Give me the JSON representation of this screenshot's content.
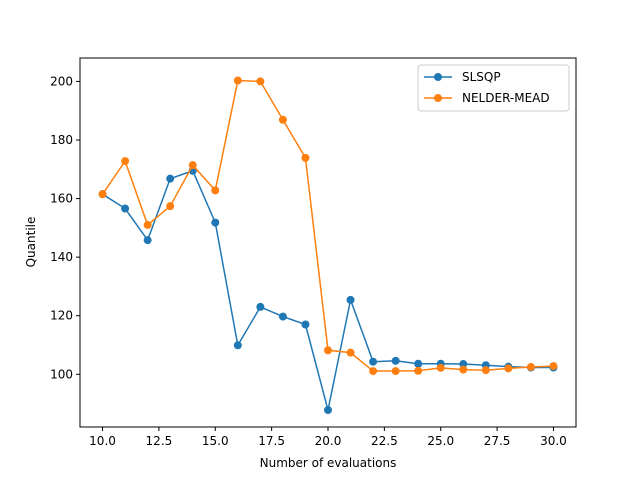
{
  "chart_data": {
    "type": "line",
    "title": "",
    "xlabel": "Number of evaluations",
    "ylabel": "Quantile",
    "xlim": [
      9.0,
      31.0
    ],
    "ylim": [
      82,
      208
    ],
    "xticks": [
      10.0,
      12.5,
      15.0,
      17.5,
      20.0,
      22.5,
      25.0,
      27.5,
      30.0
    ],
    "xtick_labels": [
      "10.0",
      "12.5",
      "15.0",
      "17.5",
      "20.0",
      "22.5",
      "25.0",
      "27.5",
      "30.0"
    ],
    "yticks": [
      100,
      120,
      140,
      160,
      180,
      200
    ],
    "ytick_labels": [
      "100",
      "120",
      "140",
      "160",
      "180",
      "200"
    ],
    "grid": false,
    "legend_position": "top-right",
    "x": [
      10,
      11,
      12,
      13,
      14,
      15,
      16,
      17,
      18,
      19,
      20,
      21,
      22,
      23,
      24,
      25,
      26,
      27,
      28,
      29,
      30
    ],
    "series": [
      {
        "name": "SLSQP",
        "color": "#1f77b4",
        "values": [
          161.5,
          156.6,
          145.8,
          166.8,
          169.5,
          151.8,
          109.9,
          123.0,
          119.7,
          117.0,
          87.8,
          125.4,
          104.3,
          104.6,
          103.6,
          103.6,
          103.5,
          103.1,
          102.6,
          102.3,
          102.3
        ]
      },
      {
        "name": "NELDER-MEAD",
        "color": "#ff7f0e",
        "values": [
          161.5,
          172.8,
          151.0,
          157.4,
          171.4,
          162.8,
          200.3,
          200.0,
          186.9,
          173.9,
          108.2,
          107.4,
          101.1,
          101.1,
          101.2,
          102.2,
          101.6,
          101.4,
          102.0,
          102.5,
          102.8
        ]
      }
    ]
  }
}
